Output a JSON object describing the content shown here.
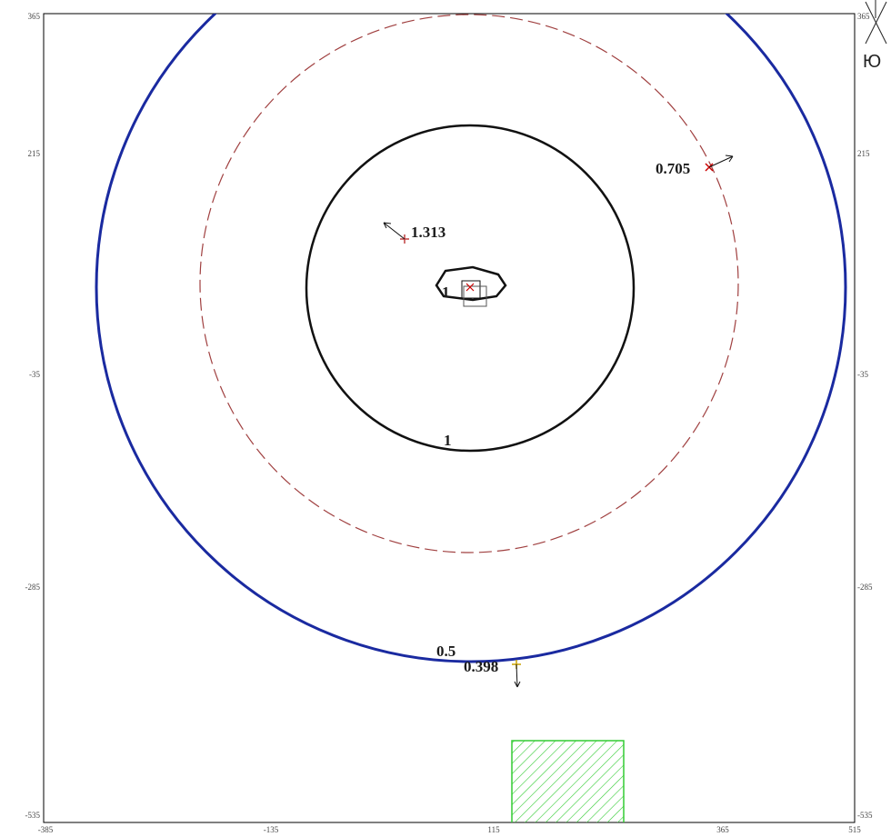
{
  "axes": {
    "left": [
      "365",
      "215",
      "-35",
      "-285",
      "-535"
    ],
    "right": [
      "365",
      "215",
      "-35",
      "-285",
      "-535"
    ],
    "bottom": [
      "-385",
      "-135",
      "115",
      "365",
      "515"
    ]
  },
  "compass": "Ю",
  "contour_labels": [
    "0.5",
    "1",
    "1"
  ],
  "points": [
    "1.313",
    "0.705",
    "0.398"
  ]
}
